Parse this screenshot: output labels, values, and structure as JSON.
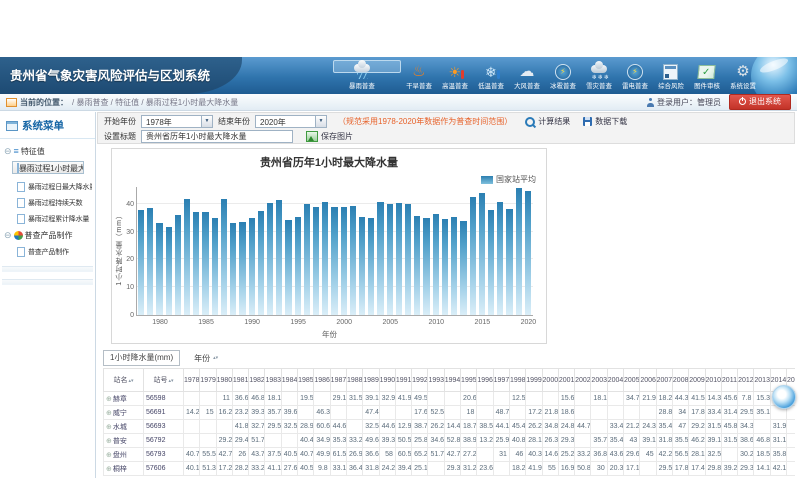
{
  "app": {
    "title": "贵州省气象灾害风险评估与区划系统"
  },
  "colors": {
    "header_blue": "#2f74ad",
    "bar_top": "#2b7fb2",
    "bar_bottom": "#daeef8",
    "legend_blue": "#3f93bd",
    "note_orange": "#e7622a",
    "logout_red": "#c33328"
  },
  "header": {
    "nav": [
      {
        "label": "暴雨普查",
        "icon": "rainstorm-icon",
        "selected": true
      },
      {
        "label": "干旱普查",
        "icon": "drought-icon",
        "selected": false
      },
      {
        "label": "高温普查",
        "icon": "high-temp-icon",
        "selected": false
      },
      {
        "label": "低温普查",
        "icon": "low-temp-icon",
        "selected": false
      },
      {
        "label": "大风普查",
        "icon": "wind-icon",
        "selected": false
      },
      {
        "label": "冰雹普查",
        "icon": "hail-icon",
        "selected": false
      },
      {
        "label": "雪灾普查",
        "icon": "snow-icon",
        "selected": false
      },
      {
        "label": "雷电普查",
        "icon": "lightning-icon",
        "selected": false
      },
      {
        "label": "综合风险",
        "icon": "composite-risk-icon",
        "selected": false
      },
      {
        "label": "图件审核",
        "icon": "map-review-icon",
        "selected": false
      },
      {
        "label": "系统设置",
        "icon": "settings-icon",
        "selected": false
      }
    ]
  },
  "breadcrumb": {
    "label": "当前的位置：",
    "path": [
      "暴雨普查",
      "特征值",
      "暴雨过程1小时最大降水量"
    ]
  },
  "user": {
    "login_label": "登录用户：管理员",
    "logout_label": "退出系统"
  },
  "sidebar": {
    "title": "系统菜单",
    "groups": [
      {
        "label": "特征值",
        "icon": "list-icon",
        "items": [
          "暴雨过程1小时最大降水量",
          "暴雨过程日最大降水量",
          "暴雨过程持续天数",
          "暴雨过程累计降水量"
        ],
        "selected_index": 0
      },
      {
        "label": "普查产品制作",
        "icon": "pie-icon",
        "items": [
          "普查产品制作"
        ],
        "selected_index": -1
      }
    ]
  },
  "toolbar": {
    "start_label": "开始年份",
    "start_value": "1978年",
    "end_label": "结束年份",
    "end_value": "2020年",
    "note": "（规范采用1978-2020年数据作为普查时间范围）",
    "calc_button": "计算结果",
    "download_button": "数据下载",
    "title_label": "设置标题",
    "chart_title_value": "贵州省历年1小时最大降水量",
    "save_button": "保存图片"
  },
  "chart_data": {
    "type": "bar",
    "title": "贵州省历年1小时最大降水量",
    "legend": [
      "国家站平均"
    ],
    "legend_position": "top-right",
    "xlabel": "年份",
    "ylabel": "1小时降水量（mm）",
    "ylim": [
      0,
      46
    ],
    "yticks": [
      0,
      10,
      20,
      30,
      40
    ],
    "xticks": [
      1980,
      1985,
      1990,
      1995,
      2000,
      2005,
      2010,
      2015,
      2020
    ],
    "grid": true,
    "categories": [
      1978,
      1979,
      1980,
      1981,
      1982,
      1983,
      1984,
      1985,
      1986,
      1987,
      1988,
      1989,
      1990,
      1991,
      1992,
      1993,
      1994,
      1995,
      1996,
      1997,
      1998,
      1999,
      2000,
      2001,
      2002,
      2003,
      2004,
      2005,
      2006,
      2007,
      2008,
      2009,
      2010,
      2011,
      2012,
      2013,
      2014,
      2015,
      2016,
      2017,
      2018,
      2019,
      2020
    ],
    "values": [
      37.6,
      38.3,
      33.2,
      31.5,
      35.8,
      41.7,
      37.0,
      36.9,
      34.7,
      41.8,
      33.1,
      33.4,
      35.0,
      37.4,
      40.4,
      41.5,
      34.2,
      35.2,
      40.0,
      38.8,
      40.7,
      38.7,
      38.9,
      39.2,
      35.1,
      35.0,
      40.5,
      39.8,
      40.2,
      40.0,
      35.6,
      35.0,
      36.2,
      34.5,
      35.1,
      33.9,
      42.3,
      43.7,
      37.6,
      40.6,
      38.0,
      45.5,
      44.7
    ]
  },
  "table": {
    "measure_filter": "1小时降水量(mm)",
    "year_group_label": "年份",
    "station_col": "站名",
    "station_id_col": "站号",
    "years": [
      "1978",
      "1979",
      "1980",
      "1981",
      "1982",
      "1983",
      "1984",
      "1985",
      "1986",
      "1987",
      "1988",
      "1989",
      "1990",
      "1991",
      "1992",
      "1993",
      "1994",
      "1995",
      "1996",
      "1997",
      "1998",
      "1999",
      "2000",
      "2001",
      "2002",
      "2003",
      "2004",
      "2005",
      "2006",
      "2007",
      "2008",
      "2009",
      "2010",
      "2011",
      "2012",
      "2013",
      "2014",
      "2015"
    ],
    "rows": [
      {
        "name": "赫章",
        "id": "56598",
        "values": {
          "1980": "11",
          "1981": "36.6",
          "1982": "46.8",
          "1983": "18.1",
          "1985": "19.5",
          "1987": "29.1",
          "1988": "31.5",
          "1989": "39.1",
          "1990": "32.9",
          "1991": "41.9",
          "1992": "49.5",
          "1995": "20.6",
          "1998": "12.5",
          "2001": "15.6",
          "2003": "18.1",
          "2005": "34.7",
          "2006": "21.9",
          "2007": "18.2",
          "2008": "44.3",
          "2009": "41.5",
          "2010": "14.3",
          "2011": "45.6",
          "2012": "7.8",
          "2013": "15.3"
        }
      },
      {
        "name": "威宁",
        "id": "56691",
        "values": {
          "1978": "14.2",
          "1979": "15",
          "1980": "16.2",
          "1981": "23.2",
          "1982": "39.3",
          "1983": "35.7",
          "1984": "39.6",
          "1986": "46.3",
          "1989": "47.4",
          "1992": "17.6",
          "1993": "52.5",
          "1995": "18",
          "1997": "48.7",
          "1999": "17.2",
          "2000": "21.8",
          "2001": "18.6",
          "2007": "28.8",
          "2008": "34",
          "2009": "17.8",
          "2010": "33.4",
          "2011": "31.4",
          "2012": "29.5",
          "2013": "35.1"
        }
      },
      {
        "name": "水城",
        "id": "56693",
        "values": {
          "1981": "41.8",
          "1982": "32.7",
          "1983": "29.5",
          "1984": "32.5",
          "1985": "28.9",
          "1986": "60.6",
          "1987": "44.6",
          "1989": "32.5",
          "1990": "44.6",
          "1991": "12.9",
          "1992": "38.7",
          "1993": "26.2",
          "1994": "14.4",
          "1995": "18.7",
          "1996": "38.5",
          "1997": "44.1",
          "1998": "45.4",
          "1999": "26.2",
          "2000": "34.8",
          "2001": "24.8",
          "2002": "44.7",
          "2004": "33.4",
          "2005": "21.2",
          "2006": "24.3",
          "2007": "35.4",
          "2008": "47",
          "2009": "29.2",
          "2010": "31.5",
          "2011": "45.8",
          "2012": "34.3",
          "2014": "31.9"
        }
      },
      {
        "name": "普安",
        "id": "56792",
        "values": {
          "1980": "29.2",
          "1981": "29.4",
          "1982": "51.7",
          "1985": "40.4",
          "1986": "34.9",
          "1987": "35.3",
          "1988": "33.2",
          "1989": "49.6",
          "1990": "39.3",
          "1991": "50.5",
          "1992": "25.8",
          "1993": "34.6",
          "1994": "52.8",
          "1995": "38.9",
          "1996": "13.2",
          "1997": "25.9",
          "1998": "40.8",
          "1999": "28.1",
          "2000": "26.3",
          "2001": "29.3",
          "2003": "35.7",
          "2004": "35.4",
          "2005": "43",
          "2006": "39.1",
          "2007": "31.8",
          "2008": "35.5",
          "2009": "46.2",
          "2010": "39.1",
          "2011": "31.5",
          "2012": "38.6",
          "2013": "46.8",
          "2014": "31.1"
        }
      },
      {
        "name": "盘州",
        "id": "56793",
        "values": {
          "1978": "40.7",
          "1979": "55.5",
          "1980": "42.7",
          "1981": "26",
          "1982": "43.7",
          "1983": "37.5",
          "1984": "40.5",
          "1985": "40.7",
          "1986": "49.9",
          "1987": "61.5",
          "1988": "26.9",
          "1989": "36.6",
          "1990": "58",
          "1991": "60.5",
          "1992": "65.2",
          "1993": "51.7",
          "1994": "42.7",
          "1995": "27.2",
          "1997": "31",
          "1998": "46",
          "1999": "40.3",
          "2000": "14.6",
          "2001": "25.2",
          "2002": "33.2",
          "2003": "36.8",
          "2004": "43.6",
          "2005": "29.6",
          "2006": "45",
          "2007": "42.2",
          "2008": "56.5",
          "2009": "28.1",
          "2010": "32.5",
          "2012": "30.2",
          "2013": "18.5",
          "2014": "35.8"
        }
      },
      {
        "name": "桐梓",
        "id": "57606",
        "values": {
          "1978": "40.1",
          "1979": "51.3",
          "1980": "17.2",
          "1981": "28.2",
          "1982": "33.2",
          "1983": "41.1",
          "1984": "27.6",
          "1985": "40.5",
          "1986": "9.8",
          "1987": "33.1",
          "1988": "36.4",
          "1989": "31.8",
          "1990": "24.2",
          "1991": "39.4",
          "1992": "25.1",
          "1994": "29.3",
          "1995": "31.2",
          "1996": "23.6",
          "1998": "18.2",
          "1999": "41.9",
          "2000": "55",
          "2001": "16.9",
          "2002": "50.8",
          "2003": "30",
          "2004": "20.3",
          "2005": "17.1",
          "2007": "29.5",
          "2008": "17.8",
          "2009": "17.4",
          "2010": "29.8",
          "2011": "39.2",
          "2012": "29.3",
          "2013": "14.1",
          "2014": "42.1"
        }
      }
    ]
  }
}
